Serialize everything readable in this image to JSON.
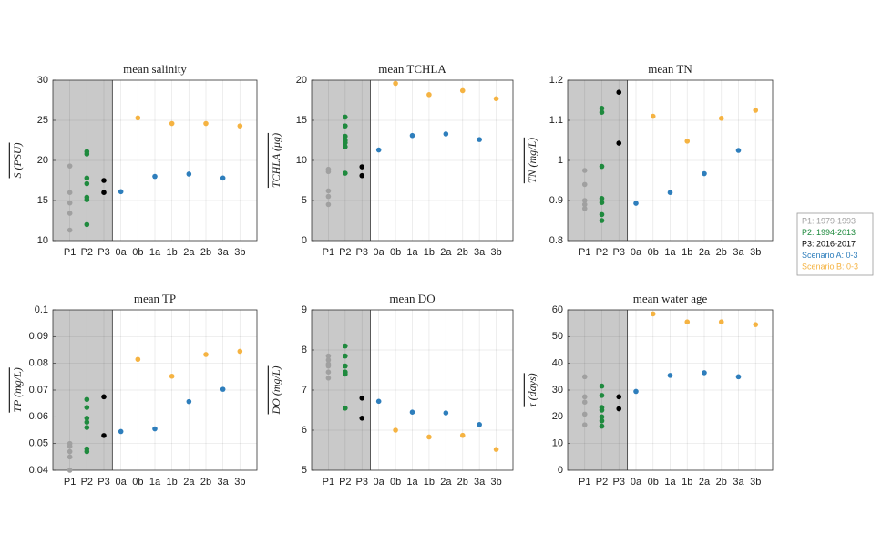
{
  "chart_data": [
    {
      "type": "scatter",
      "title": "mean salinity",
      "y_label": "S (PSU)",
      "categories": [
        "P1",
        "P2",
        "P3",
        "0a",
        "0b",
        "1a",
        "1b",
        "2a",
        "2b",
        "3a",
        "3b"
      ],
      "ylim": [
        10,
        30
      ],
      "yticks": [
        10,
        15,
        20,
        25,
        30
      ],
      "grid": true,
      "series": [
        {
          "name": "P1: 1979-1993",
          "color": "#a0a0a0",
          "values": [
            [
              19.3,
              16,
              14.7,
              13.4,
              11.3
            ],
            null,
            null,
            null,
            null,
            null,
            null,
            null,
            null,
            null,
            null
          ]
        },
        {
          "name": "P2: 1994-2013",
          "color": "#1f8a3e",
          "values": [
            null,
            [
              21.1,
              20.8,
              17.8,
              17.1,
              15.4,
              15.1,
              12
            ],
            null,
            null,
            null,
            null,
            null,
            null,
            null,
            null,
            null
          ]
        },
        {
          "name": "P3: 2016-2017",
          "color": "#000000",
          "values": [
            null,
            null,
            [
              17.5,
              16
            ],
            null,
            null,
            null,
            null,
            null,
            null,
            null,
            null
          ]
        },
        {
          "name": "Scenario A: 0-3",
          "color": "#2e7ebc",
          "values": [
            null,
            null,
            null,
            16.1,
            null,
            18,
            null,
            18.3,
            null,
            17.8,
            null
          ]
        },
        {
          "name": "Scenario B: 0-3",
          "color": "#f5b342",
          "values": [
            null,
            null,
            null,
            null,
            25.3,
            null,
            24.6,
            null,
            24.6,
            null,
            24.3
          ]
        }
      ]
    },
    {
      "type": "scatter",
      "title": "mean TCHLA",
      "y_label": "TCHLA (μg)",
      "categories": [
        "P1",
        "P2",
        "P3",
        "0a",
        "0b",
        "1a",
        "1b",
        "2a",
        "2b",
        "3a",
        "3b"
      ],
      "ylim": [
        0,
        20
      ],
      "yticks": [
        0,
        5,
        10,
        15,
        20
      ],
      "grid": true,
      "series": [
        {
          "name": "P1: 1979-1993",
          "color": "#a0a0a0",
          "values": [
            [
              8.9,
              8.6,
              6.2,
              5.5,
              4.5
            ],
            null,
            null,
            null,
            null,
            null,
            null,
            null,
            null,
            null,
            null
          ]
        },
        {
          "name": "P2: 1994-2013",
          "color": "#1f8a3e",
          "values": [
            null,
            [
              15.4,
              14.3,
              13,
              12.5,
              12.2,
              11.7,
              8.4
            ],
            null,
            null,
            null,
            null,
            null,
            null,
            null,
            null,
            null
          ]
        },
        {
          "name": "P3: 2016-2017",
          "color": "#000000",
          "values": [
            null,
            null,
            [
              9.2,
              8.1
            ],
            null,
            null,
            null,
            null,
            null,
            null,
            null,
            null
          ]
        },
        {
          "name": "Scenario A: 0-3",
          "color": "#2e7ebc",
          "values": [
            null,
            null,
            null,
            11.3,
            null,
            13.1,
            null,
            13.3,
            null,
            12.6,
            null
          ]
        },
        {
          "name": "Scenario B: 0-3",
          "color": "#f5b342",
          "values": [
            null,
            null,
            null,
            null,
            19.6,
            null,
            18.2,
            null,
            18.7,
            null,
            17.7
          ]
        }
      ]
    },
    {
      "type": "scatter",
      "title": "mean TN",
      "y_label": "TN (mg/L)",
      "categories": [
        "P1",
        "P2",
        "P3",
        "0a",
        "0b",
        "1a",
        "1b",
        "2a",
        "2b",
        "3a",
        "3b"
      ],
      "ylim": [
        0.8,
        1.2
      ],
      "yticks": [
        0.8,
        0.9,
        1,
        1.1,
        1.2
      ],
      "grid": true,
      "series": [
        {
          "name": "P1: 1979-1993",
          "color": "#a0a0a0",
          "values": [
            [
              0.975,
              0.94,
              0.9,
              0.89,
              0.88
            ],
            null,
            null,
            null,
            null,
            null,
            null,
            null,
            null,
            null,
            null
          ]
        },
        {
          "name": "P2: 1994-2013",
          "color": "#1f8a3e",
          "values": [
            null,
            [
              1.13,
              1.12,
              0.985,
              0.905,
              0.895,
              0.865,
              0.85
            ],
            null,
            null,
            null,
            null,
            null,
            null,
            null,
            null,
            null
          ]
        },
        {
          "name": "P3: 2016-2017",
          "color": "#000000",
          "values": [
            null,
            null,
            [
              1.17,
              1.043
            ],
            null,
            null,
            null,
            null,
            null,
            null,
            null,
            null
          ]
        },
        {
          "name": "Scenario A: 0-3",
          "color": "#2e7ebc",
          "values": [
            null,
            null,
            null,
            0.893,
            null,
            0.92,
            null,
            0.967,
            null,
            1.025,
            null
          ]
        },
        {
          "name": "Scenario B: 0-3",
          "color": "#f5b342",
          "values": [
            null,
            null,
            null,
            null,
            1.11,
            null,
            1.048,
            null,
            1.105,
            null,
            1.125
          ]
        }
      ]
    },
    {
      "type": "scatter",
      "title": "mean TP",
      "y_label": "TP (mg/L)",
      "categories": [
        "P1",
        "P2",
        "P3",
        "0a",
        "0b",
        "1a",
        "1b",
        "2a",
        "2b",
        "3a",
        "3b"
      ],
      "ylim": [
        0.04,
        0.1
      ],
      "yticks": [
        0.04,
        0.05,
        0.06,
        0.07,
        0.08,
        0.09,
        0.1
      ],
      "grid": true,
      "series": [
        {
          "name": "P1: 1979-1993",
          "color": "#a0a0a0",
          "values": [
            [
              0.05,
              0.049,
              0.047,
              0.045,
              0.04
            ],
            null,
            null,
            null,
            null,
            null,
            null,
            null,
            null,
            null,
            null
          ]
        },
        {
          "name": "P2: 1994-2013",
          "color": "#1f8a3e",
          "values": [
            null,
            [
              0.0665,
              0.0635,
              0.0595,
              0.058,
              0.056,
              0.048,
              0.047
            ],
            null,
            null,
            null,
            null,
            null,
            null,
            null,
            null,
            null
          ]
        },
        {
          "name": "P3: 2016-2017",
          "color": "#000000",
          "values": [
            null,
            null,
            [
              0.0675,
              0.053
            ],
            null,
            null,
            null,
            null,
            null,
            null,
            null,
            null
          ]
        },
        {
          "name": "Scenario A: 0-3",
          "color": "#2e7ebc",
          "values": [
            null,
            null,
            null,
            0.0545,
            null,
            0.0555,
            null,
            0.0657,
            null,
            0.0703,
            null
          ]
        },
        {
          "name": "Scenario B: 0-3",
          "color": "#f5b342",
          "values": [
            null,
            null,
            null,
            null,
            0.0815,
            null,
            0.0752,
            null,
            0.0833,
            null,
            0.0845
          ]
        }
      ]
    },
    {
      "type": "scatter",
      "title": "mean DO",
      "y_label": "DO (mg/L)",
      "categories": [
        "P1",
        "P2",
        "P3",
        "0a",
        "0b",
        "1a",
        "1b",
        "2a",
        "2b",
        "3a",
        "3b"
      ],
      "ylim": [
        5,
        9
      ],
      "yticks": [
        5,
        6,
        7,
        8,
        9
      ],
      "grid": true,
      "series": [
        {
          "name": "P1: 1979-1993",
          "color": "#a0a0a0",
          "values": [
            [
              7.85,
              7.75,
              7.65,
              7.6,
              7.45,
              7.3
            ],
            null,
            null,
            null,
            null,
            null,
            null,
            null,
            null,
            null,
            null
          ]
        },
        {
          "name": "P2: 1994-2013",
          "color": "#1f8a3e",
          "values": [
            null,
            [
              8.1,
              7.85,
              7.6,
              7.45,
              7.4,
              6.55
            ],
            null,
            null,
            null,
            null,
            null,
            null,
            null,
            null,
            null
          ]
        },
        {
          "name": "P3: 2016-2017",
          "color": "#000000",
          "values": [
            null,
            null,
            [
              6.8,
              6.3
            ],
            null,
            null,
            null,
            null,
            null,
            null,
            null,
            null
          ]
        },
        {
          "name": "Scenario A: 0-3",
          "color": "#2e7ebc",
          "values": [
            null,
            null,
            null,
            6.72,
            null,
            6.45,
            null,
            6.43,
            null,
            6.14,
            null
          ]
        },
        {
          "name": "Scenario B: 0-3",
          "color": "#f5b342",
          "values": [
            null,
            null,
            null,
            null,
            6.0,
            null,
            5.83,
            null,
            5.87,
            null,
            5.52
          ]
        }
      ]
    },
    {
      "type": "scatter",
      "title": "mean water age",
      "y_label": "τ (days)",
      "categories": [
        "P1",
        "P2",
        "P3",
        "0a",
        "0b",
        "1a",
        "1b",
        "2a",
        "2b",
        "3a",
        "3b"
      ],
      "ylim": [
        0,
        60
      ],
      "yticks": [
        0,
        10,
        20,
        30,
        40,
        50,
        60
      ],
      "grid": true,
      "series": [
        {
          "name": "P1: 1979-1993",
          "color": "#a0a0a0",
          "values": [
            [
              35,
              27.5,
              25.5,
              21,
              17
            ],
            null,
            null,
            null,
            null,
            null,
            null,
            null,
            null,
            null,
            null
          ]
        },
        {
          "name": "P2: 1994-2013",
          "color": "#1f8a3e",
          "values": [
            null,
            [
              31.5,
              28,
              23.5,
              22.5,
              20,
              18.5,
              16.5
            ],
            null,
            null,
            null,
            null,
            null,
            null,
            null,
            null,
            null
          ]
        },
        {
          "name": "P3: 2016-2017",
          "color": "#000000",
          "values": [
            null,
            null,
            [
              27.5,
              23
            ],
            null,
            null,
            null,
            null,
            null,
            null,
            null,
            null
          ]
        },
        {
          "name": "Scenario A: 0-3",
          "color": "#2e7ebc",
          "values": [
            null,
            null,
            null,
            29.5,
            null,
            35.5,
            null,
            36.5,
            null,
            35,
            null
          ]
        },
        {
          "name": "Scenario B: 0-3",
          "color": "#f5b342",
          "values": [
            null,
            null,
            null,
            null,
            58.5,
            null,
            55.5,
            null,
            55.5,
            null,
            54.5
          ]
        }
      ]
    }
  ]
}
